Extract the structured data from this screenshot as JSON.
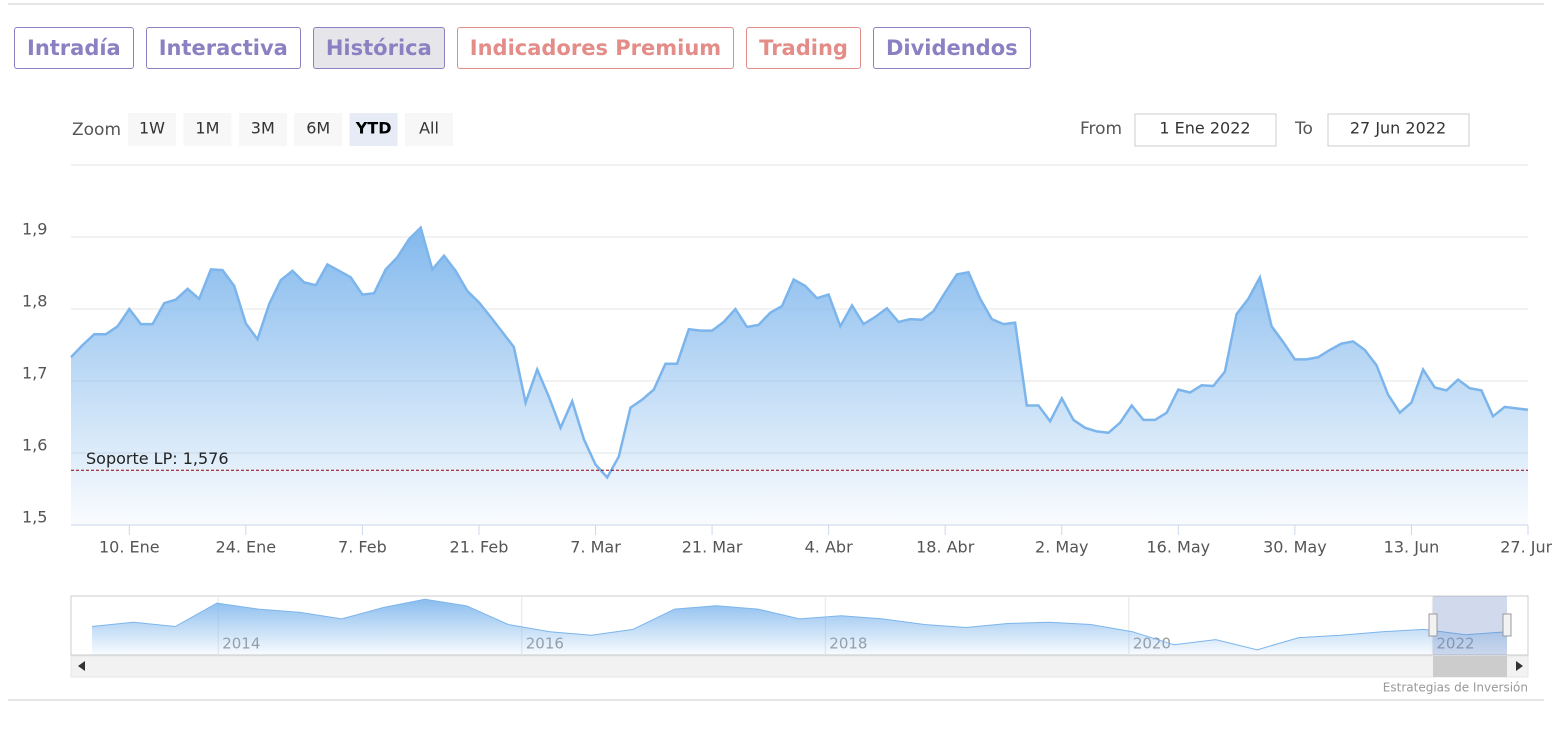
{
  "ui": {
    "tabs": [
      {
        "label": "Intradía",
        "color": "#8a80c2"
      },
      {
        "label": "Interactiva",
        "color": "#8a80c2"
      },
      {
        "label": "Histórica",
        "color": "#8a80c2",
        "selected": true
      },
      {
        "label": "Indicadores Premium",
        "color": "#e38c88"
      },
      {
        "label": "Trading",
        "color": "#e38c88"
      },
      {
        "label": "Dividendos",
        "color": "#8a80c2"
      }
    ],
    "zoom_label": "Zoom",
    "zoom_buttons": [
      {
        "label": "1W"
      },
      {
        "label": "1M"
      },
      {
        "label": "3M"
      },
      {
        "label": "6M"
      },
      {
        "label": "YTD",
        "selected": true
      },
      {
        "label": "All"
      }
    ],
    "from_label": "From",
    "from_value": "1 Ene 2022",
    "to_label": "To",
    "to_value": "27 Jun 2022",
    "credit": "Estrategias de Inversión"
  },
  "chart_data": {
    "type": "area",
    "color": "#7cb5ec",
    "x": [
      "3. Ene",
      "4. Ene",
      "5. Ene",
      "6. Ene",
      "7. Ene",
      "10. Ene",
      "11. Ene",
      "12. Ene",
      "13. Ene",
      "14. Ene",
      "17. Ene",
      "18. Ene",
      "19. Ene",
      "20. Ene",
      "21. Ene",
      "24. Ene",
      "25. Ene",
      "26. Ene",
      "27. Ene",
      "28. Ene",
      "31. Ene",
      "1. Feb",
      "2. Feb",
      "3. Feb",
      "4. Feb",
      "7. Feb",
      "8. Feb",
      "9. Feb",
      "10. Feb",
      "11. Feb",
      "14. Feb",
      "15. Feb",
      "16. Feb",
      "17. Feb",
      "18. Feb",
      "21. Feb",
      "22. Feb",
      "23. Feb",
      "24. Feb",
      "25. Feb",
      "28. Feb",
      "1. Mar",
      "2. Mar",
      "3. Mar",
      "4. Mar",
      "7. Mar",
      "8. Mar",
      "9. Mar",
      "10. Mar",
      "11. Mar",
      "14. Mar",
      "15. Mar",
      "16. Mar",
      "17. Mar",
      "18. Mar",
      "21. Mar",
      "22. Mar",
      "23. Mar",
      "24. Mar",
      "25. Mar",
      "28. Mar",
      "29. Mar",
      "30. Mar",
      "31. Mar",
      "1. Abr",
      "4. Abr",
      "5. Abr",
      "6. Abr",
      "7. Abr",
      "8. Abr",
      "11. Abr",
      "12. Abr",
      "13. Abr",
      "14. Abr",
      "15. Abr",
      "18. Abr",
      "19. Abr",
      "20. Abr",
      "21. Abr",
      "22. Abr",
      "25. Abr",
      "26. Abr",
      "27. Abr",
      "28. Abr",
      "29. Abr",
      "2. May",
      "3. May",
      "4. May",
      "5. May",
      "6. May",
      "9. May",
      "10. May",
      "11. May",
      "12. May",
      "13. May",
      "16. May",
      "17. May",
      "18. May",
      "19. May",
      "20. May",
      "23. May",
      "24. May",
      "25. May",
      "26. May",
      "27. May",
      "30. May",
      "31. May",
      "1. Jun",
      "2. Jun",
      "3. Jun",
      "6. Jun",
      "7. Jun",
      "8. Jun",
      "9. Jun",
      "10. Jun",
      "13. Jun",
      "14. Jun",
      "15. Jun",
      "16. Jun",
      "17. Jun",
      "20. Jun",
      "21. Jun",
      "22. Jun",
      "23. Jun",
      "24. Jun",
      "27. Jun"
    ],
    "values": [
      1.733,
      1.75,
      1.765,
      1.765,
      1.776,
      1.8,
      1.779,
      1.779,
      1.808,
      1.813,
      1.828,
      1.814,
      1.855,
      1.854,
      1.832,
      1.78,
      1.758,
      1.807,
      1.84,
      1.853,
      1.837,
      1.833,
      1.862,
      1.853,
      1.844,
      1.82,
      1.822,
      1.855,
      1.872,
      1.897,
      1.913,
      1.855,
      1.874,
      1.853,
      1.825,
      1.809,
      1.789,
      1.768,
      1.747,
      1.67,
      1.716,
      1.678,
      1.635,
      1.672,
      1.619,
      1.584,
      1.566,
      1.595,
      1.663,
      1.674,
      1.688,
      1.724,
      1.724,
      1.772,
      1.77,
      1.77,
      1.782,
      1.8,
      1.775,
      1.778,
      1.795,
      1.804,
      1.841,
      1.832,
      1.815,
      1.82,
      1.776,
      1.805,
      1.779,
      1.789,
      1.801,
      1.782,
      1.786,
      1.785,
      1.797,
      1.823,
      1.848,
      1.851,
      1.814,
      1.786,
      1.779,
      1.781,
      1.666,
      1.666,
      1.644,
      1.676,
      1.646,
      1.635,
      1.63,
      1.628,
      1.642,
      1.666,
      1.646,
      1.646,
      1.656,
      1.688,
      1.684,
      1.694,
      1.693,
      1.713,
      1.793,
      1.814,
      1.844,
      1.776,
      1.754,
      1.73,
      1.73,
      1.733,
      1.743,
      1.752,
      1.755,
      1.743,
      1.722,
      1.681,
      1.656,
      1.67,
      1.716,
      1.691,
      1.687,
      1.702,
      1.69,
      1.687,
      1.651,
      1.664,
      1.662,
      1.66
    ],
    "xticks": [
      "10. Ene",
      "24. Ene",
      "7. Feb",
      "21. Feb",
      "7. Mar",
      "21. Mar",
      "4. Abr",
      "18. Abr",
      "2. May",
      "16. May",
      "30. May",
      "13. Jun",
      "27. Jun"
    ],
    "ylim": [
      1.5,
      2.0
    ],
    "yticks": [
      {
        "value": 1.5,
        "label": "1,5"
      },
      {
        "value": 1.6,
        "label": "1,6"
      },
      {
        "value": 1.7,
        "label": "1,7"
      },
      {
        "value": 1.8,
        "label": "1,8"
      },
      {
        "value": 1.9,
        "label": "1,9"
      }
    ],
    "grid": true,
    "plot_lines": [
      {
        "value": 1.576,
        "label": "Soporte LP: 1,576",
        "color": "#8b0000"
      }
    ],
    "navigator": {
      "xlim": [
        2013.03,
        2022.63
      ],
      "xticks": [
        2014,
        2016,
        2018,
        2020,
        2022
      ],
      "ylim": [
        1.0,
        2.8
      ],
      "values": [
        1.87,
        2.0,
        1.87,
        2.58,
        2.4,
        2.3,
        2.1,
        2.45,
        2.7,
        2.5,
        1.93,
        1.71,
        1.6,
        1.78,
        2.4,
        2.5,
        2.4,
        2.1,
        2.2,
        2.1,
        1.93,
        1.84,
        1.96,
        2.0,
        1.93,
        1.71,
        1.31,
        1.47,
        1.16,
        1.53,
        1.6,
        1.71,
        1.78,
        1.62,
        1.71
      ]
    }
  }
}
